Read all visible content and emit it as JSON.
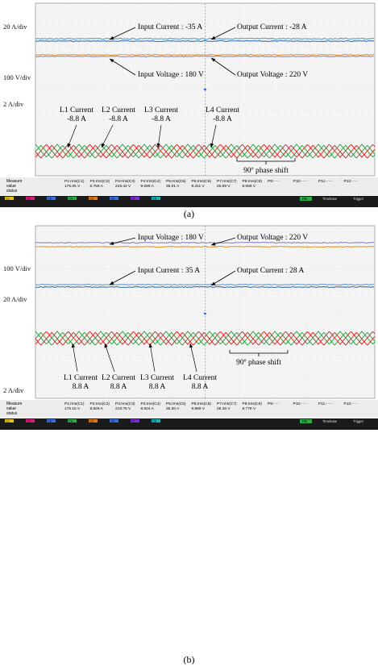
{
  "colors": {
    "input_current": "#5e9ccf",
    "output_current": "#3b6fb0",
    "input_voltage": "#8c86c4",
    "output_voltage": "#e89b2c",
    "l1": "#d81b1b",
    "l2": "#1f9d3a",
    "l3": "#1f9d3a",
    "l4": "#d81b1b",
    "grid": "#c9c9c9",
    "screen": "#f4f4f4"
  },
  "panels": [
    {
      "caption": "(a)",
      "scales": {
        "top": "20 A/div",
        "mid": "100 V/div",
        "low": "2 A/div"
      },
      "annotations": {
        "input_current": "Input Current : -35 A",
        "output_current": "Output Current : -28 A",
        "input_voltage": "Input Voltage : 180 V",
        "output_voltage": "Output Voltage : 220 V",
        "l1": "L1 Current",
        "l1_value": "-8.8 A",
        "l2": "L2 Current",
        "l2_value": "-8.8 A",
        "l3": "L3 Current",
        "l3_value": "-8.8 A",
        "l4": "L4 Current",
        "l4_value": "-8.8 A",
        "phase": "90º phase shift"
      },
      "measure": {
        "row1_label": "Measure",
        "row2_label": "value",
        "row3_label": "status",
        "headers": [
          "P1:rms(C1)",
          "P2:rms(C2)",
          "P3:rms(C3)",
          "P4:rms(C4)",
          "P5:rms(C5)",
          "P6:rms(C6)",
          "P7:rms(C7)",
          "P8:rms(C8)",
          "P9:- - -",
          "P10:- - -",
          "P11:- - -",
          "P12:- - -"
        ],
        "values": [
          "175.05 V",
          "6.758 A",
          "219.42 V",
          "9.089 A",
          "35.01 A",
          "9.311 V",
          "26.89 V",
          "9.086 V",
          "",
          "",
          "",
          ""
        ]
      },
      "channels": [
        "C1",
        "C2",
        "C3",
        "C4",
        "C5",
        "C6",
        "C7",
        "C8"
      ],
      "timebase": "Timebase",
      "trigger": "Trigger",
      "hd": "HD"
    },
    {
      "caption": "(b)",
      "scales": {
        "top": "100 V/div",
        "mid": "20 A/div",
        "low": "2 A/div"
      },
      "annotations": {
        "input_voltage": "Input Voltage : 180 V",
        "output_voltage": "Output Voltage : 220 V",
        "input_current": "Input Current : 35 A",
        "output_current": "Output Current : 28 A",
        "l1": "L1 Current",
        "l1_value": "8.8 A",
        "l2": "L2 Current",
        "l2_value": "8.8 A",
        "l3": "L3 Current",
        "l3_value": "8.8 A",
        "l4": "L4 Current",
        "l4_value": "8.8 A",
        "phase": "90º phase shift"
      },
      "measure": {
        "row1_label": "Measure",
        "row2_label": "value",
        "row3_label": "status",
        "headers": [
          "P1:rms(C1)",
          "P2:rms(C2)",
          "P3:rms(C3)",
          "P4:rms(C4)",
          "P5:rms(C5)",
          "P6:rms(C6)",
          "P7:rms(C7)",
          "P8:rms(C8)",
          "P9:- - -",
          "P10:- - -",
          "P11:- - -",
          "P12:- - -"
        ],
        "values": [
          "175.15 V",
          "8.829 A",
          "219.76 V",
          "8.924 A",
          "36.30 A",
          "9.869 V",
          "28.46 V",
          "8.778 V",
          "",
          "",
          "",
          ""
        ]
      },
      "channels": [
        "C1",
        "C2",
        "C3",
        "C4",
        "C5",
        "C6",
        "C7",
        "C8"
      ],
      "timebase": "Timebase",
      "trigger": "Trigger",
      "hd": "HD"
    }
  ],
  "chart_data": [
    {
      "type": "line",
      "title": "(a)",
      "series": [
        {
          "name": "Input Current",
          "value": -35,
          "unit": "A"
        },
        {
          "name": "Output Current",
          "value": -28,
          "unit": "A"
        },
        {
          "name": "Input Voltage",
          "value": 180,
          "unit": "V"
        },
        {
          "name": "Output Voltage",
          "value": 220,
          "unit": "V"
        },
        {
          "name": "L1 Current",
          "value": -8.8,
          "unit": "A",
          "phase_deg": 0
        },
        {
          "name": "L2 Current",
          "value": -8.8,
          "unit": "A",
          "phase_deg": 90
        },
        {
          "name": "L3 Current",
          "value": -8.8,
          "unit": "A",
          "phase_deg": 180
        },
        {
          "name": "L4 Current",
          "value": -8.8,
          "unit": "A",
          "phase_deg": 270
        }
      ],
      "annotations": [
        "90º phase shift"
      ],
      "scales": [
        "20 A/div",
        "100 V/div",
        "2 A/div"
      ],
      "grid": true
    },
    {
      "type": "line",
      "title": "(b)",
      "series": [
        {
          "name": "Input Voltage",
          "value": 180,
          "unit": "V"
        },
        {
          "name": "Output Voltage",
          "value": 220,
          "unit": "V"
        },
        {
          "name": "Input Current",
          "value": 35,
          "unit": "A"
        },
        {
          "name": "Output Current",
          "value": 28,
          "unit": "A"
        },
        {
          "name": "L1 Current",
          "value": 8.8,
          "unit": "A",
          "phase_deg": 0
        },
        {
          "name": "L2 Current",
          "value": 8.8,
          "unit": "A",
          "phase_deg": 90
        },
        {
          "name": "L3 Current",
          "value": 8.8,
          "unit": "A",
          "phase_deg": 180
        },
        {
          "name": "L4 Current",
          "value": 8.8,
          "unit": "A",
          "phase_deg": 270
        }
      ],
      "annotations": [
        "90º phase shift"
      ],
      "scales": [
        "100 V/div",
        "20 A/div",
        "2 A/div"
      ],
      "grid": true
    }
  ]
}
